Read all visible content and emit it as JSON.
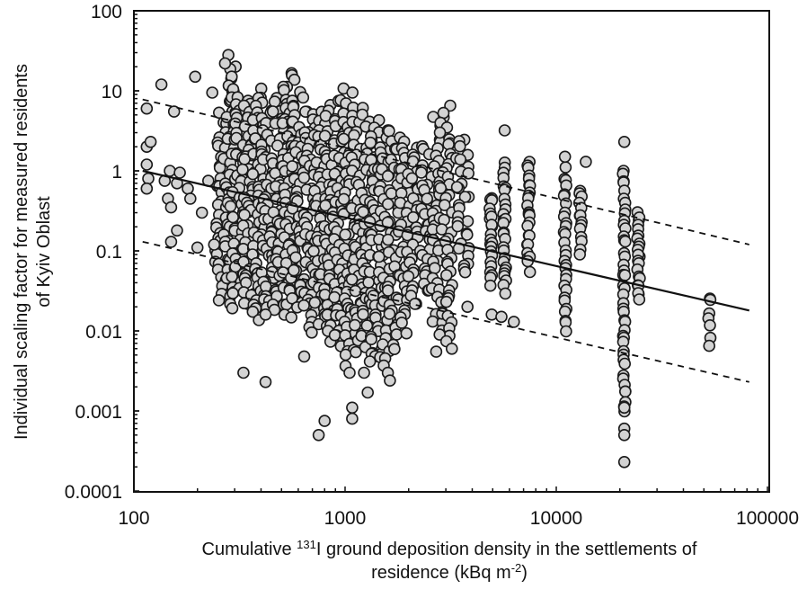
{
  "chart_data": {
    "type": "scatter",
    "title": "",
    "xlabel": "Cumulative 131I ground deposition density in the settlements of residence (kBq m-2)",
    "xlabel_parts": {
      "pre": "Cumulative ",
      "sup1": "131",
      "mid": "I ground deposition density in the settlements of",
      "line2": "residence (kBq m",
      "sup2": "-2",
      "post": ")"
    },
    "ylabel_line1": "Individual scaling factor for measured residents",
    "ylabel_line2": "of Kyiv Oblast",
    "xscale": "log",
    "yscale": "log",
    "xlim": [
      100,
      100000
    ],
    "ylim": [
      0.0001,
      100
    ],
    "x_ticks": [
      "100",
      "1000",
      "10000",
      "100000"
    ],
    "y_ticks": [
      "100",
      "10",
      "1",
      "0.1",
      "0.01",
      "0.001",
      "0.0001"
    ],
    "grid": false,
    "legend": null,
    "marker": {
      "shape": "circle",
      "fill": "#d3d3d3",
      "edge": "#1a1a1a"
    },
    "lines": [
      {
        "name": "regression",
        "style": "solid",
        "x": [
          110,
          82000
        ],
        "y": [
          1.0,
          0.018
        ]
      },
      {
        "name": "upper-bound",
        "style": "dashed",
        "x": [
          110,
          82000
        ],
        "y": [
          7.8,
          0.12
        ]
      },
      {
        "name": "lower-bound",
        "style": "dashed",
        "x": [
          110,
          82000
        ],
        "y": [
          0.13,
          0.0023
        ]
      }
    ],
    "columns": [
      {
        "x": 260,
        "ymin": 0.025,
        "ymax": 5.5,
        "n": 40
      },
      {
        "x": 285,
        "ymin": 0.02,
        "ymax": 20,
        "n": 55
      },
      {
        "x": 310,
        "ymin": 0.03,
        "ymax": 10,
        "n": 45
      },
      {
        "x": 350,
        "ymin": 0.02,
        "ymax": 8,
        "n": 50
      },
      {
        "x": 390,
        "ymin": 0.015,
        "ymax": 10,
        "n": 50
      },
      {
        "x": 430,
        "ymin": 0.02,
        "ymax": 6,
        "n": 45
      },
      {
        "x": 480,
        "ymin": 0.02,
        "ymax": 8,
        "n": 45
      },
      {
        "x": 540,
        "ymin": 0.015,
        "ymax": 18,
        "n": 55
      },
      {
        "x": 600,
        "ymin": 0.02,
        "ymax": 10,
        "n": 45
      },
      {
        "x": 680,
        "ymin": 0.01,
        "ymax": 6,
        "n": 50
      },
      {
        "x": 760,
        "ymin": 0.012,
        "ymax": 5,
        "n": 45
      },
      {
        "x": 850,
        "ymin": 0.008,
        "ymax": 6,
        "n": 45
      },
      {
        "x": 950,
        "ymin": 0.006,
        "ymax": 8,
        "n": 50
      },
      {
        "x": 1050,
        "ymin": 0.004,
        "ymax": 10,
        "n": 55
      },
      {
        "x": 1150,
        "ymin": 0.006,
        "ymax": 6,
        "n": 45
      },
      {
        "x": 1280,
        "ymin": 0.005,
        "ymax": 5,
        "n": 45
      },
      {
        "x": 1400,
        "ymin": 0.004,
        "ymax": 4,
        "n": 45
      },
      {
        "x": 1550,
        "ymin": 0.003,
        "ymax": 3.5,
        "n": 40
      },
      {
        "x": 1700,
        "ymin": 0.006,
        "ymax": 3,
        "n": 35
      },
      {
        "x": 1900,
        "ymin": 0.01,
        "ymax": 2.5,
        "n": 35
      },
      {
        "x": 2100,
        "ymin": 0.02,
        "ymax": 2,
        "n": 30
      },
      {
        "x": 2400,
        "ymin": 0.03,
        "ymax": 2,
        "n": 30
      },
      {
        "x": 2750,
        "ymin": 0.01,
        "ymax": 5,
        "n": 40
      },
      {
        "x": 3000,
        "ymin": 0.006,
        "ymax": 6,
        "n": 45
      },
      {
        "x": 3600,
        "ymin": 0.05,
        "ymax": 2.5,
        "n": 30
      },
      {
        "x": 4900,
        "ymin": 0.04,
        "ymax": 0.5,
        "n": 22
      },
      {
        "x": 5700,
        "ymin": 0.03,
        "ymax": 1.2,
        "n": 28
      },
      {
        "x": 7400,
        "ymin": 0.06,
        "ymax": 1.4,
        "n": 25
      },
      {
        "x": 11000,
        "ymin": 0.01,
        "ymax": 1.0,
        "n": 30
      },
      {
        "x": 13000,
        "ymin": 0.1,
        "ymax": 0.6,
        "n": 14
      },
      {
        "x": 21000,
        "ymin": 0.001,
        "ymax": 1.1,
        "n": 45
      },
      {
        "x": 24500,
        "ymin": 0.025,
        "ymax": 0.3,
        "n": 22
      },
      {
        "x": 53000,
        "ymin": 0.007,
        "ymax": 0.028,
        "n": 7
      }
    ],
    "outliers": [
      {
        "x": 115,
        "y": 6.0
      },
      {
        "x": 115,
        "y": 2.0
      },
      {
        "x": 120,
        "y": 2.3
      },
      {
        "x": 115,
        "y": 1.2
      },
      {
        "x": 117,
        "y": 0.8
      },
      {
        "x": 115,
        "y": 0.6
      },
      {
        "x": 135,
        "y": 12
      },
      {
        "x": 140,
        "y": 0.75
      },
      {
        "x": 145,
        "y": 0.45
      },
      {
        "x": 150,
        "y": 0.35
      },
      {
        "x": 155,
        "y": 5.5
      },
      {
        "x": 148,
        "y": 1.0
      },
      {
        "x": 160,
        "y": 0.7
      },
      {
        "x": 165,
        "y": 0.95
      },
      {
        "x": 150,
        "y": 0.13
      },
      {
        "x": 160,
        "y": 0.18
      },
      {
        "x": 180,
        "y": 0.6
      },
      {
        "x": 185,
        "y": 0.45
      },
      {
        "x": 195,
        "y": 15
      },
      {
        "x": 200,
        "y": 0.11
      },
      {
        "x": 210,
        "y": 0.3
      },
      {
        "x": 225,
        "y": 0.75
      },
      {
        "x": 235,
        "y": 9.5
      },
      {
        "x": 240,
        "y": 0.12
      },
      {
        "x": 280,
        "y": 28
      },
      {
        "x": 270,
        "y": 22
      },
      {
        "x": 330,
        "y": 0.003
      },
      {
        "x": 420,
        "y": 0.0023
      },
      {
        "x": 420,
        "y": 0.016
      },
      {
        "x": 640,
        "y": 0.0048
      },
      {
        "x": 750,
        "y": 0.0005
      },
      {
        "x": 800,
        "y": 0.00075
      },
      {
        "x": 1080,
        "y": 0.0011
      },
      {
        "x": 1080,
        "y": 0.0008
      },
      {
        "x": 1280,
        "y": 0.0017
      },
      {
        "x": 1050,
        "y": 0.003
      },
      {
        "x": 1230,
        "y": 0.003
      },
      {
        "x": 1630,
        "y": 0.0024
      },
      {
        "x": 2700,
        "y": 0.0055
      },
      {
        "x": 3800,
        "y": 0.02
      },
      {
        "x": 4950,
        "y": 0.016
      },
      {
        "x": 5700,
        "y": 3.2
      },
      {
        "x": 5500,
        "y": 0.015
      },
      {
        "x": 6300,
        "y": 0.013
      },
      {
        "x": 11000,
        "y": 1.5
      },
      {
        "x": 13800,
        "y": 1.3
      },
      {
        "x": 21000,
        "y": 0.0006
      },
      {
        "x": 21000,
        "y": 0.0005
      },
      {
        "x": 21000,
        "y": 0.00023
      },
      {
        "x": 21000,
        "y": 0.0011
      },
      {
        "x": 21000,
        "y": 2.3
      }
    ]
  }
}
